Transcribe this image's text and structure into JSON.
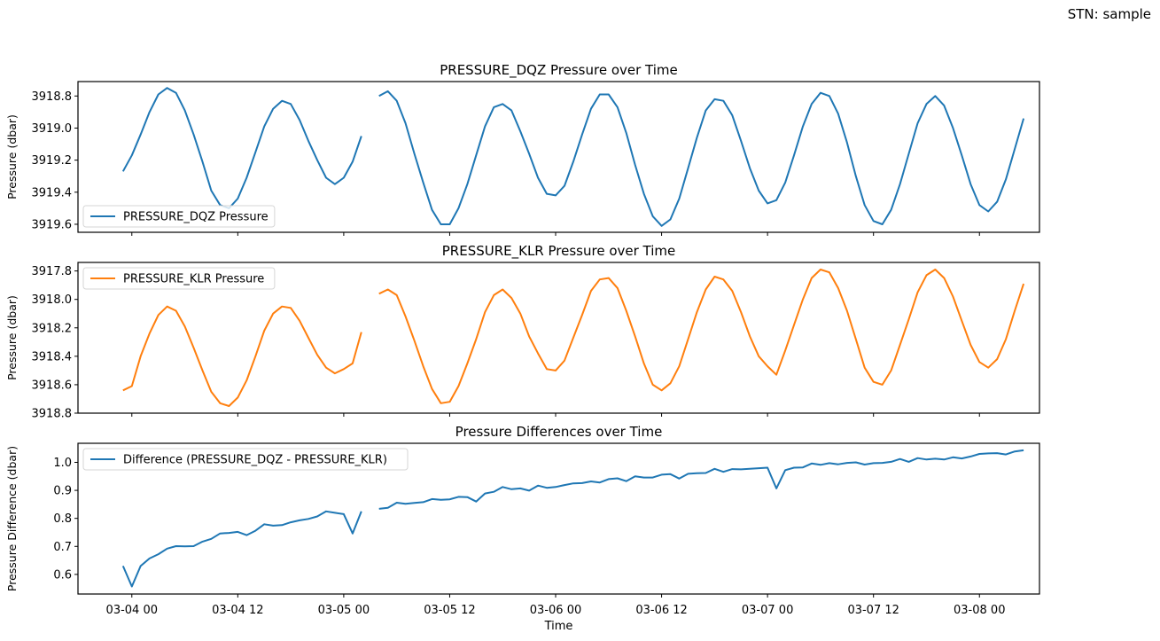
{
  "figure": {
    "suptitle": "STN: sample"
  },
  "colors": {
    "dqz": "#1f77b4",
    "klr": "#ff7f0e",
    "diff": "#1f77b4"
  },
  "chart_data": [
    {
      "type": "line",
      "title": "PRESSURE_DQZ Pressure over Time",
      "xlabel": "",
      "ylabel": "Pressure (dbar)",
      "y_inverted": true,
      "ylim": [
        3919.65,
        3918.71
      ],
      "yticks": [
        3918.8,
        3919.0,
        3919.2,
        3919.4,
        3919.6
      ],
      "ytick_labels": [
        "3918.8",
        "3919.0",
        "3919.2",
        "3919.4",
        "3919.6"
      ],
      "xlim_hours": [
        -6.1,
        102.8
      ],
      "xticks_hours": [
        0,
        12,
        24,
        36,
        48,
        60,
        72,
        84,
        96
      ],
      "xtick_labels": [
        "03-04 00",
        "03-04 12",
        "03-05 00",
        "03-05 12",
        "03-06 00",
        "03-06 12",
        "03-07 00",
        "03-07 12",
        "03-08 00"
      ],
      "show_xtick_labels": false,
      "legend": {
        "label": "PRESSURE_DQZ Pressure",
        "loc": "lower left"
      },
      "series": [
        {
          "name": "PRESSURE_DQZ Pressure",
          "segments": [
            {
              "start_hour": -1,
              "values": [
                3919.27,
                3919.17,
                3919.04,
                3918.9,
                3918.79,
                3918.75,
                3918.78,
                3918.89,
                3919.04,
                3919.21,
                3919.39,
                3919.48,
                3919.5,
                3919.44,
                3919.31,
                3919.15,
                3918.99,
                3918.88,
                3918.83,
                3918.85,
                3918.95,
                3919.08,
                3919.2,
                3919.31,
                3919.35,
                3919.31,
                3919.21,
                3919.05
              ]
            },
            {
              "start_hour": 28,
              "values": [
                3918.8,
                3918.77,
                3918.83,
                3918.97,
                3919.16,
                3919.34,
                3919.51,
                3919.6,
                3919.6,
                3919.5,
                3919.35,
                3919.17,
                3918.99,
                3918.87,
                3918.85,
                3918.89,
                3919.02,
                3919.16,
                3919.31,
                3919.41,
                3919.42,
                3919.36,
                3919.21,
                3919.04,
                3918.88,
                3918.79,
                3918.79,
                3918.87,
                3919.03,
                3919.23,
                3919.41,
                3919.55,
                3919.61,
                3919.57,
                3919.44,
                3919.25,
                3919.06,
                3918.89,
                3918.82,
                3918.83,
                3918.92,
                3919.08,
                3919.25,
                3919.39,
                3919.47,
                3919.45,
                3919.34,
                3919.17,
                3918.99,
                3918.85,
                3918.78,
                3918.8,
                3918.91,
                3919.09,
                3919.3,
                3919.48,
                3919.58,
                3919.6,
                3919.51,
                3919.35,
                3919.16,
                3918.97,
                3918.85,
                3918.8,
                3918.86,
                3919.0,
                3919.17,
                3919.35,
                3919.48,
                3919.52,
                3919.46,
                3919.32,
                3919.13,
                3918.94
              ]
            }
          ]
        }
      ]
    },
    {
      "type": "line",
      "title": "PRESSURE_KLR Pressure over Time",
      "xlabel": "",
      "ylabel": "Pressure (dbar)",
      "y_inverted": true,
      "ylim": [
        3918.8,
        3917.74
      ],
      "yticks": [
        3917.8,
        3918.0,
        3918.2,
        3918.4,
        3918.6,
        3918.8
      ],
      "ytick_labels": [
        "3917.8",
        "3918.0",
        "3918.2",
        "3918.4",
        "3918.6",
        "3918.8"
      ],
      "xlim_hours": [
        -6.1,
        102.8
      ],
      "xticks_hours": [
        0,
        12,
        24,
        36,
        48,
        60,
        72,
        84,
        96
      ],
      "show_xtick_labels": false,
      "legend": {
        "label": "PRESSURE_KLR Pressure",
        "loc": "upper left"
      },
      "series": [
        {
          "name": "PRESSURE_KLR Pressure",
          "segments": [
            {
              "start_hour": -1,
              "values": [
                3918.64,
                3918.61,
                3918.4,
                3918.24,
                3918.11,
                3918.05,
                3918.08,
                3918.19,
                3918.34,
                3918.5,
                3918.65,
                3918.73,
                3918.75,
                3918.69,
                3918.57,
                3918.4,
                3918.22,
                3918.1,
                3918.05,
                3918.06,
                3918.15,
                3918.27,
                3918.39,
                3918.48,
                3918.52,
                3918.49,
                3918.45,
                3918.23
              ]
            },
            {
              "start_hour": 28,
              "values": [
                3917.96,
                3917.93,
                3917.97,
                3918.12,
                3918.29,
                3918.47,
                3918.63,
                3918.73,
                3918.72,
                3918.61,
                3918.45,
                3918.28,
                3918.09,
                3917.97,
                3917.93,
                3917.99,
                3918.1,
                3918.26,
                3918.38,
                3918.49,
                3918.5,
                3918.43,
                3918.27,
                3918.11,
                3917.94,
                3917.86,
                3917.85,
                3917.92,
                3918.08,
                3918.26,
                3918.45,
                3918.6,
                3918.64,
                3918.59,
                3918.47,
                3918.28,
                3918.09,
                3917.93,
                3917.84,
                3917.86,
                3917.94,
                3918.09,
                3918.26,
                3918.4,
                3918.47,
                3918.53,
                3918.36,
                3918.18,
                3918.0,
                3917.85,
                3917.79,
                3917.81,
                3917.92,
                3918.08,
                3918.28,
                3918.48,
                3918.58,
                3918.6,
                3918.5,
                3918.32,
                3918.14,
                3917.95,
                3917.83,
                3917.79,
                3917.85,
                3917.98,
                3918.15,
                3918.32,
                3918.44,
                3918.48,
                3918.42,
                3918.28,
                3918.08,
                3917.89
              ]
            }
          ]
        }
      ]
    },
    {
      "type": "line",
      "title": "Pressure Differences over Time",
      "xlabel": "Time",
      "ylabel": "Pressure Difference (dbar)",
      "ylim": [
        0.53,
        1.068
      ],
      "yticks": [
        0.6,
        0.7,
        0.8,
        0.9,
        1.0
      ],
      "ytick_labels": [
        "0.6",
        "0.7",
        "0.8",
        "0.9",
        "1.0"
      ],
      "xlim_hours": [
        -6.1,
        102.8
      ],
      "xticks_hours": [
        0,
        12,
        24,
        36,
        48,
        60,
        72,
        84,
        96
      ],
      "xtick_labels": [
        "03-04 00",
        "03-04 12",
        "03-05 00",
        "03-05 12",
        "03-06 00",
        "03-06 12",
        "03-07 00",
        "03-07 12",
        "03-08 00"
      ],
      "show_xtick_labels": true,
      "legend": {
        "label": "Difference (PRESSURE_DQZ - PRESSURE_KLR)",
        "loc": "upper left"
      },
      "series": [
        {
          "name": "Difference (PRESSURE_DQZ - PRESSURE_KLR)",
          "segments": [
            {
              "start_hour": -1,
              "values": [
                0.63,
                0.557,
                0.63,
                0.657,
                0.672,
                0.692,
                0.701,
                0.7,
                0.701,
                0.717,
                0.727,
                0.746,
                0.748,
                0.752,
                0.74,
                0.756,
                0.779,
                0.774,
                0.776,
                0.786,
                0.793,
                0.798,
                0.807,
                0.825,
                0.82,
                0.815,
                0.746,
                0.825
              ]
            },
            {
              "start_hour": 28,
              "values": [
                0.834,
                0.838,
                0.856,
                0.852,
                0.855,
                0.858,
                0.869,
                0.866,
                0.868,
                0.877,
                0.876,
                0.86,
                0.889,
                0.895,
                0.912,
                0.904,
                0.907,
                0.899,
                0.917,
                0.909,
                0.912,
                0.919,
                0.925,
                0.926,
                0.932,
                0.928,
                0.94,
                0.943,
                0.933,
                0.95,
                0.946,
                0.946,
                0.956,
                0.958,
                0.942,
                0.959,
                0.961,
                0.962,
                0.977,
                0.966,
                0.976,
                0.975,
                0.977,
                0.979,
                0.981,
                0.907,
                0.972,
                0.981,
                0.982,
                0.996,
                0.991,
                0.997,
                0.993,
                0.998,
                1.0,
                0.992,
                0.997,
                0.998,
                1.002,
                1.012,
                1.002,
                1.015,
                1.01,
                1.013,
                1.01,
                1.018,
                1.014,
                1.021,
                1.03,
                1.032,
                1.033,
                1.028,
                1.039,
                1.043
              ]
            }
          ]
        }
      ]
    }
  ]
}
